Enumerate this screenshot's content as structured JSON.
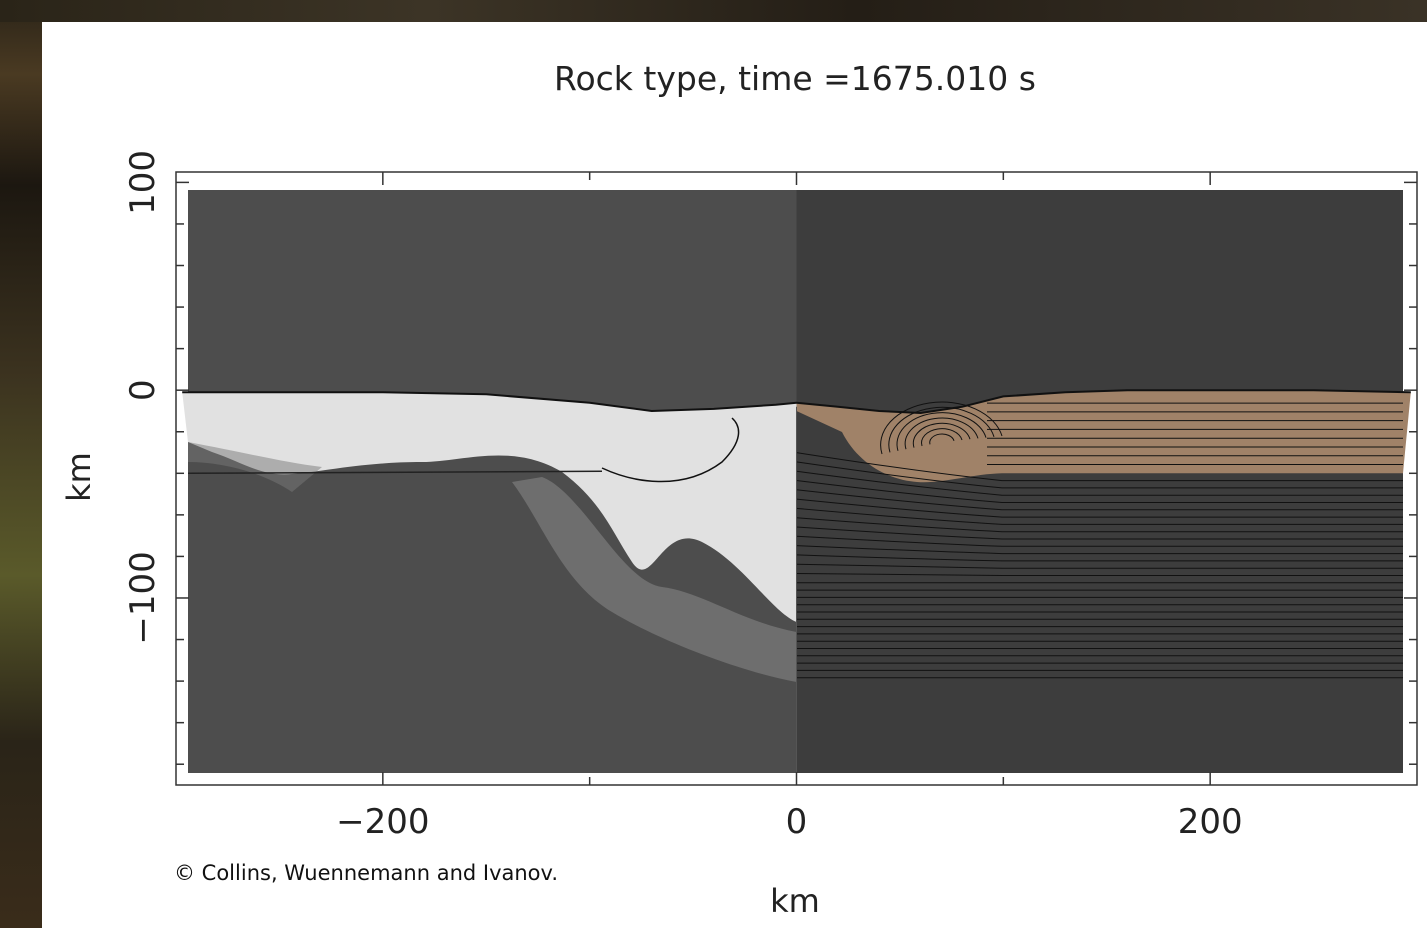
{
  "chart_data": {
    "type": "heatmap",
    "title": "Rock type, time =1675.010 s",
    "xlabel": "km",
    "ylabel": "km",
    "xlim": [
      -300,
      300
    ],
    "ylim": [
      -190,
      105
    ],
    "x_ticks": [
      {
        "value": -200,
        "label": "−200"
      },
      {
        "value": 0,
        "label": "0"
      },
      {
        "value": 200,
        "label": "200"
      }
    ],
    "y_ticks": [
      {
        "value": 100,
        "label": "100"
      },
      {
        "value": 0,
        "label": "0"
      },
      {
        "value": -100,
        "label": "−100"
      }
    ],
    "x_minor_step": 100,
    "y_minor_step": 20,
    "left_half": "grayscale field",
    "right_half": "material (rock type) with tracer lines",
    "surface_profile_km": [
      [
        -297,
        -1
      ],
      [
        -250,
        -1
      ],
      [
        -200,
        -1
      ],
      [
        -150,
        -2
      ],
      [
        -100,
        -6
      ],
      [
        -70,
        -10
      ],
      [
        -40,
        -9
      ],
      [
        -10,
        -7
      ],
      [
        0,
        -6
      ],
      [
        20,
        -8
      ],
      [
        40,
        -10
      ],
      [
        60,
        -11
      ],
      [
        80,
        -8
      ],
      [
        100,
        -3
      ],
      [
        130,
        -1
      ],
      [
        160,
        0
      ],
      [
        200,
        0
      ],
      [
        250,
        0
      ],
      [
        297,
        -1
      ]
    ],
    "crust_base_km": -40,
    "colors": {
      "sky": "#ffffff",
      "upper_light": "#e1e1e1",
      "mid_gray": "#7a7a7a",
      "mantle_dark": "#4d4d4d",
      "mantle_right": "#3d3d3d",
      "crust_brown": "#a08268",
      "tracer_line": "#111111"
    }
  },
  "credit": "© Collins, Wuennemann and Ivanov."
}
